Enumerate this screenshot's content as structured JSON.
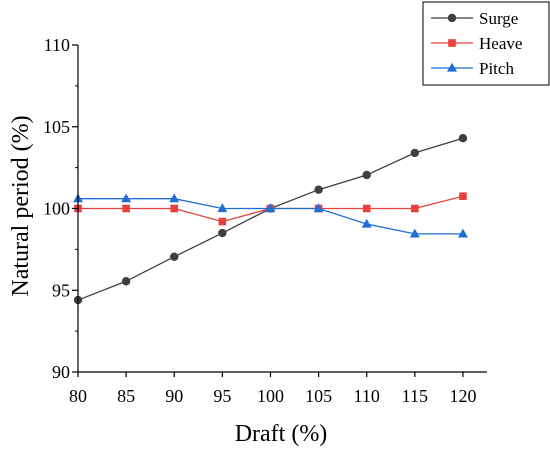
{
  "chart_data": {
    "type": "line",
    "xlabel": "Draft (%)",
    "ylabel": "Natural period  (%)",
    "xlim": [
      80,
      122.5
    ],
    "ylim": [
      90,
      110
    ],
    "xticks": [
      80,
      85,
      90,
      95,
      100,
      105,
      110,
      115,
      120
    ],
    "yticks": [
      90,
      95,
      100,
      105,
      110
    ],
    "grid": false,
    "legend_position": "top-right",
    "series": [
      {
        "name": "Surge",
        "color": "#3f3f3f",
        "marker": "circle",
        "x": [
          80,
          85,
          90,
          95,
          100,
          105,
          110,
          115,
          120
        ],
        "y": [
          94.4,
          95.55,
          97.05,
          98.5,
          100.0,
          101.15,
          102.05,
          103.4,
          104.3
        ]
      },
      {
        "name": "Heave",
        "color": "#e8413d",
        "marker": "square",
        "x": [
          80,
          85,
          90,
          95,
          100,
          105,
          110,
          115,
          120
        ],
        "y": [
          100.0,
          100.0,
          100.0,
          99.2,
          100.0,
          100.0,
          100.0,
          100.0,
          100.75
        ]
      },
      {
        "name": "Pitch",
        "color": "#1f6fd6",
        "marker": "triangle",
        "x": [
          80,
          85,
          90,
          95,
          100,
          105,
          110,
          115,
          120
        ],
        "y": [
          100.6,
          100.6,
          100.6,
          100.0,
          100.0,
          100.0,
          99.05,
          98.45,
          98.45
        ]
      }
    ]
  }
}
